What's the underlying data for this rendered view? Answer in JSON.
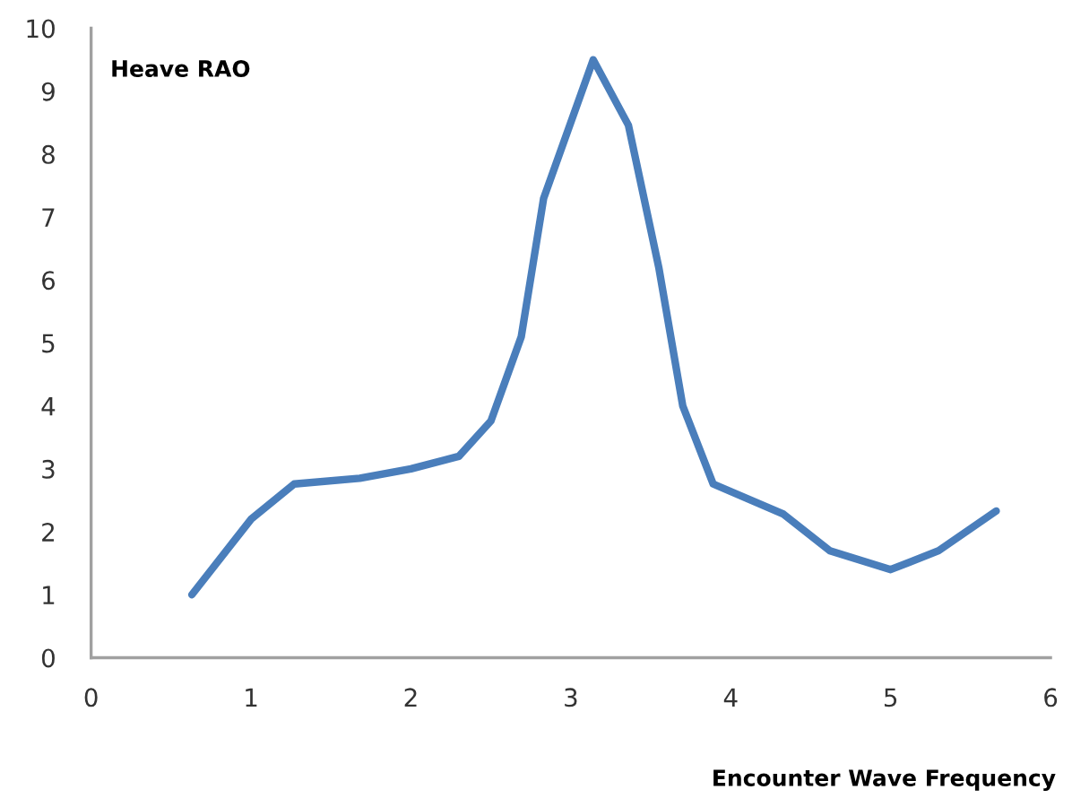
{
  "chart_data": {
    "type": "line",
    "xlabel": "Encounter Wave Frequency",
    "ylabel": "Heave RAO",
    "xlim": [
      0,
      6
    ],
    "xticks": [
      0,
      1,
      2,
      3,
      4,
      5,
      6
    ],
    "ylim": [
      0,
      10
    ],
    "yticks": [
      0,
      1,
      2,
      3,
      4,
      5,
      6,
      7,
      8,
      9,
      10
    ],
    "grid": false,
    "legend": false,
    "marker": "none",
    "line_style": "solid",
    "series": [
      {
        "color": "#4a7ebb",
        "x": [
          0.63,
          1.0,
          1.27,
          1.68,
          2.0,
          2.3,
          2.5,
          2.69,
          2.83,
          3.14,
          3.36,
          3.55,
          3.7,
          3.89,
          4.33,
          4.62,
          5.0,
          5.3,
          5.66
        ],
        "values": [
          1.0,
          2.2,
          2.76,
          2.85,
          3.0,
          3.2,
          3.76,
          5.1,
          7.3,
          9.5,
          8.46,
          6.2,
          4.0,
          2.76,
          2.28,
          1.7,
          1.4,
          1.7,
          2.33
        ]
      }
    ]
  }
}
